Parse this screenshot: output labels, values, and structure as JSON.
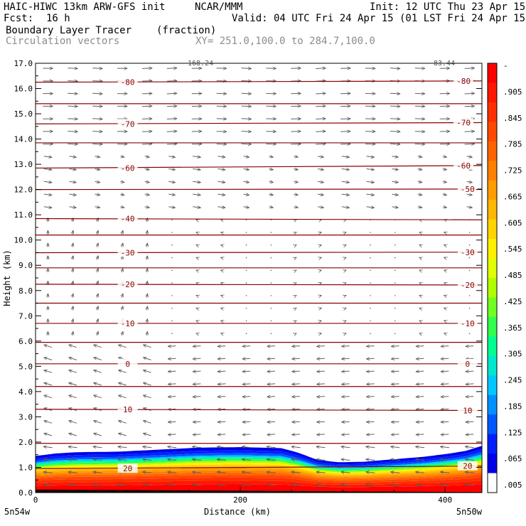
{
  "header": {
    "model": "HAIC-HIWC 13km ARW-GFS init",
    "org": "NCAR/MMM",
    "init": "Init: 12 UTC Thu 23 Apr 15",
    "fcst_label": "Fcst:",
    "fcst_value": "16 h",
    "valid": "Valid: 04 UTC Fri 24 Apr 15 (01 LST Fri 24 Apr 15)",
    "field": "Boundary Layer Tracer",
    "field_units": "(fraction)",
    "vectors": "Circulation vectors",
    "xy": "XY= 251.0,100.0 to 284.7,100.0",
    "top_left_tag": "168.24",
    "top_right_tag": "83.44"
  },
  "chart_data": {
    "type": "heatmap",
    "xlabel": "Distance (km)",
    "ylabel": "Height (km)",
    "xlim": [
      0,
      436
    ],
    "ylim": [
      0,
      17
    ],
    "x_ticks": [
      "0",
      "200",
      "400"
    ],
    "y_ticks": [
      "0.0",
      "1.0",
      "2.0",
      "3.0",
      "4.0",
      "5.0",
      "6.0",
      "7.0",
      "8.0",
      "9.0",
      "10.0",
      "11.0",
      "12.0",
      "13.0",
      "14.0",
      "15.0",
      "16.0",
      "17.0"
    ],
    "x_start_label": "5n54w",
    "x_end_label": "5n50w",
    "colorbar": {
      "labels": [
        "-",
        ".905",
        ".845",
        ".785",
        ".725",
        ".665",
        ".605",
        ".545",
        ".485",
        ".425",
        ".365",
        ".305",
        ".245",
        ".185",
        ".125",
        ".065",
        ".005"
      ],
      "colors": [
        "#ff0000",
        "#ff1800",
        "#ff3000",
        "#ff4800",
        "#ff6400",
        "#ff8000",
        "#ff9c00",
        "#ffb800",
        "#ffd400",
        "#fff000",
        "#e0ff00",
        "#b0ff00",
        "#70ff20",
        "#30ff50",
        "#00ff90",
        "#00e8d0",
        "#00c8ff",
        "#0090ff",
        "#0058ff",
        "#0020ff",
        "#0000e8",
        "#ffffff"
      ]
    },
    "tracer_top_km": [
      [
        0,
        1.45
      ],
      [
        20,
        1.55
      ],
      [
        40,
        1.6
      ],
      [
        80,
        1.62
      ],
      [
        120,
        1.7
      ],
      [
        160,
        1.78
      ],
      [
        200,
        1.8
      ],
      [
        240,
        1.76
      ],
      [
        255,
        1.6
      ],
      [
        275,
        1.3
      ],
      [
        295,
        1.2
      ],
      [
        320,
        1.22
      ],
      [
        350,
        1.32
      ],
      [
        380,
        1.42
      ],
      [
        405,
        1.55
      ],
      [
        420,
        1.65
      ],
      [
        436,
        1.85
      ]
    ],
    "isotherms": [
      {
        "label": "-80",
        "y": [
          16.25,
          16.3
        ]
      },
      {
        "label": "-70",
        "y": [
          14.6,
          14.65
        ]
      },
      {
        "label": "-60",
        "y": [
          12.85,
          12.95
        ]
      },
      {
        "label": "-50",
        "y": [
          12.0,
          12.02
        ]
      },
      {
        "label": "-40",
        "y": [
          10.85,
          10.8
        ]
      },
      {
        "label": "-30",
        "y": [
          9.5,
          9.52
        ]
      },
      {
        "label": "-20",
        "y": [
          8.25,
          8.22
        ]
      },
      {
        "label": "-10",
        "y": [
          6.7,
          6.7
        ]
      },
      {
        "label": "0",
        "y": [
          5.1,
          5.1
        ]
      },
      {
        "label": "10",
        "y": [
          3.3,
          3.25
        ]
      },
      {
        "label": "20",
        "y": [
          0.95,
          1.05
        ]
      }
    ],
    "extra_isotherms_y": [
      15.4,
      13.85,
      10.2,
      8.9,
      7.5,
      5.95,
      4.2,
      1.95
    ],
    "isotherm_label_positions": [
      {
        "label": "-80",
        "x": 90,
        "y": 16.25
      },
      {
        "label": "-80",
        "x": 418,
        "y": 16.3
      },
      {
        "label": "-70",
        "x": 90,
        "y": 14.6
      },
      {
        "label": "-70",
        "x": 418,
        "y": 14.65
      },
      {
        "label": "-60",
        "x": 90,
        "y": 12.85
      },
      {
        "label": "-60",
        "x": 418,
        "y": 12.95
      },
      {
        "label": "-50",
        "x": 422,
        "y": 12.02
      },
      {
        "label": "-40",
        "x": 90,
        "y": 10.85
      },
      {
        "label": "-30",
        "x": 90,
        "y": 9.5
      },
      {
        "label": "-30",
        "x": 422,
        "y": 9.52
      },
      {
        "label": "-20",
        "x": 90,
        "y": 8.25
      },
      {
        "label": "-20",
        "x": 422,
        "y": 8.22
      },
      {
        "label": "-10",
        "x": 90,
        "y": 6.7
      },
      {
        "label": "-10",
        "x": 422,
        "y": 6.7
      },
      {
        "label": "0",
        "x": 90,
        "y": 5.1
      },
      {
        "label": "0",
        "x": 422,
        "y": 5.1
      },
      {
        "label": "10",
        "x": 90,
        "y": 3.3
      },
      {
        "label": "10",
        "x": 422,
        "y": 3.25
      },
      {
        "label": "20",
        "x": 90,
        "y": 0.95
      },
      {
        "label": "20",
        "x": 422,
        "y": 1.05
      }
    ]
  }
}
